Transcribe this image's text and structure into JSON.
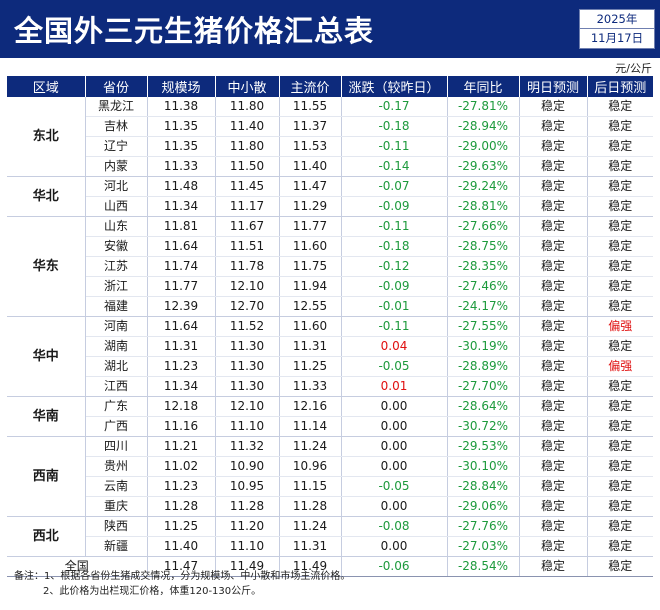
{
  "header": {
    "title": "全国外三元生猪价格汇总表",
    "year": "2025年",
    "date": "11月17日"
  },
  "unit": "元/公斤",
  "columns": [
    "区域",
    "省份",
    "规模场",
    "中小散",
    "主流价",
    "涨跌（较昨日）",
    "年同比",
    "明日预测",
    "后日预测"
  ],
  "groups": [
    {
      "region": "东北",
      "rows": [
        {
          "province": "黑龙江",
          "large": "11.38",
          "small": "11.80",
          "main": "11.55",
          "change": "-0.17",
          "yoy": "-27.81%",
          "tomorrow": "稳定",
          "after": "稳定"
        },
        {
          "province": "吉林",
          "large": "11.35",
          "small": "11.40",
          "main": "11.37",
          "change": "-0.18",
          "yoy": "-28.94%",
          "tomorrow": "稳定",
          "after": "稳定"
        },
        {
          "province": "辽宁",
          "large": "11.35",
          "small": "11.80",
          "main": "11.53",
          "change": "-0.11",
          "yoy": "-29.00%",
          "tomorrow": "稳定",
          "after": "稳定"
        },
        {
          "province": "内蒙",
          "large": "11.33",
          "small": "11.50",
          "main": "11.40",
          "change": "-0.14",
          "yoy": "-29.63%",
          "tomorrow": "稳定",
          "after": "稳定"
        }
      ]
    },
    {
      "region": "华北",
      "rows": [
        {
          "province": "河北",
          "large": "11.48",
          "small": "11.45",
          "main": "11.47",
          "change": "-0.07",
          "yoy": "-29.24%",
          "tomorrow": "稳定",
          "after": "稳定"
        },
        {
          "province": "山西",
          "large": "11.34",
          "small": "11.17",
          "main": "11.29",
          "change": "-0.09",
          "yoy": "-28.81%",
          "tomorrow": "稳定",
          "after": "稳定"
        }
      ]
    },
    {
      "region": "华东",
      "rows": [
        {
          "province": "山东",
          "large": "11.81",
          "small": "11.67",
          "main": "11.77",
          "change": "-0.11",
          "yoy": "-27.66%",
          "tomorrow": "稳定",
          "after": "稳定"
        },
        {
          "province": "安徽",
          "large": "11.64",
          "small": "11.51",
          "main": "11.60",
          "change": "-0.18",
          "yoy": "-28.75%",
          "tomorrow": "稳定",
          "after": "稳定"
        },
        {
          "province": "江苏",
          "large": "11.74",
          "small": "11.78",
          "main": "11.75",
          "change": "-0.12",
          "yoy": "-28.35%",
          "tomorrow": "稳定",
          "after": "稳定"
        },
        {
          "province": "浙江",
          "large": "11.77",
          "small": "12.10",
          "main": "11.94",
          "change": "-0.09",
          "yoy": "-27.46%",
          "tomorrow": "稳定",
          "after": "稳定"
        },
        {
          "province": "福建",
          "large": "12.39",
          "small": "12.70",
          "main": "12.55",
          "change": "-0.01",
          "yoy": "-24.17%",
          "tomorrow": "稳定",
          "after": "稳定"
        }
      ]
    },
    {
      "region": "华中",
      "rows": [
        {
          "province": "河南",
          "large": "11.64",
          "small": "11.52",
          "main": "11.60",
          "change": "-0.11",
          "yoy": "-27.55%",
          "tomorrow": "稳定",
          "after": "偏强"
        },
        {
          "province": "湖南",
          "large": "11.31",
          "small": "11.30",
          "main": "11.31",
          "change": "0.04",
          "yoy": "-30.19%",
          "tomorrow": "稳定",
          "after": "稳定"
        },
        {
          "province": "湖北",
          "large": "11.23",
          "small": "11.30",
          "main": "11.25",
          "change": "-0.05",
          "yoy": "-28.89%",
          "tomorrow": "稳定",
          "after": "偏强"
        },
        {
          "province": "江西",
          "large": "11.34",
          "small": "11.30",
          "main": "11.33",
          "change": "0.01",
          "yoy": "-27.70%",
          "tomorrow": "稳定",
          "after": "稳定"
        }
      ]
    },
    {
      "region": "华南",
      "rows": [
        {
          "province": "广东",
          "large": "12.18",
          "small": "12.10",
          "main": "12.16",
          "change": "0.00",
          "yoy": "-28.64%",
          "tomorrow": "稳定",
          "after": "稳定"
        },
        {
          "province": "广西",
          "large": "11.16",
          "small": "11.10",
          "main": "11.14",
          "change": "0.00",
          "yoy": "-30.72%",
          "tomorrow": "稳定",
          "after": "稳定"
        }
      ]
    },
    {
      "region": "西南",
      "rows": [
        {
          "province": "四川",
          "large": "11.21",
          "small": "11.32",
          "main": "11.24",
          "change": "0.00",
          "yoy": "-29.53%",
          "tomorrow": "稳定",
          "after": "稳定"
        },
        {
          "province": "贵州",
          "large": "11.02",
          "small": "10.90",
          "main": "10.96",
          "change": "0.00",
          "yoy": "-30.10%",
          "tomorrow": "稳定",
          "after": "稳定"
        },
        {
          "province": "云南",
          "large": "11.23",
          "small": "10.95",
          "main": "11.15",
          "change": "-0.05",
          "yoy": "-28.84%",
          "tomorrow": "稳定",
          "after": "稳定"
        },
        {
          "province": "重庆",
          "large": "11.28",
          "small": "11.28",
          "main": "11.28",
          "change": "0.00",
          "yoy": "-29.06%",
          "tomorrow": "稳定",
          "after": "稳定"
        }
      ]
    },
    {
      "region": "西北",
      "rows": [
        {
          "province": "陕西",
          "large": "11.25",
          "small": "11.20",
          "main": "11.24",
          "change": "-0.08",
          "yoy": "-27.76%",
          "tomorrow": "稳定",
          "after": "稳定"
        },
        {
          "province": "新疆",
          "large": "11.40",
          "small": "11.10",
          "main": "11.31",
          "change": "0.00",
          "yoy": "-27.03%",
          "tomorrow": "稳定",
          "after": "稳定"
        }
      ]
    }
  ],
  "total": {
    "label": "全国",
    "large": "11.47",
    "small": "11.49",
    "main": "11.49",
    "change": "-0.06",
    "yoy": "-28.54%",
    "tomorrow": "稳定",
    "after": "稳定"
  },
  "notes": [
    "备注：1、根据各省份生猪成交情况，分为规模场、中小散和市场主流价格。",
    "2、此价格为出栏现汇价格，体重120-130公斤。"
  ],
  "colors": {
    "header_bg": "#0d2a7c",
    "rise": "#e01010",
    "fall": "#1d9a3c",
    "strong": "#e01010"
  }
}
